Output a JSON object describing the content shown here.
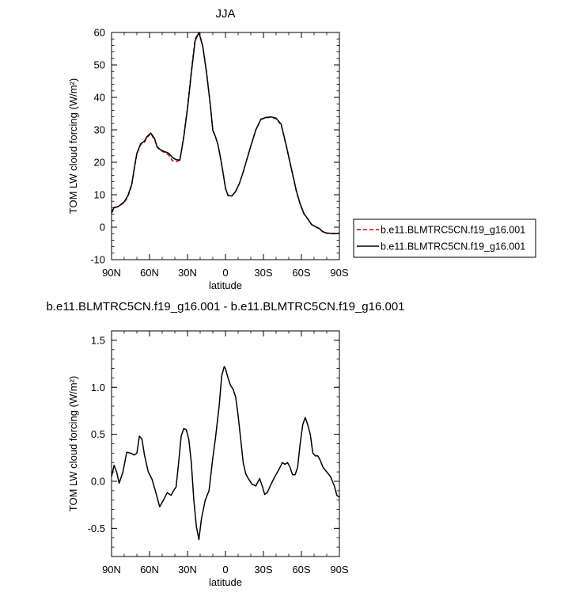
{
  "chart_data": [
    {
      "type": "line",
      "title": "JJA",
      "xlabel": "latitude",
      "ylabel": "TOM LW cloud forcing (W/m²)",
      "ylim": [
        -10,
        60
      ],
      "yticks": [
        -10,
        0,
        10,
        20,
        30,
        40,
        50,
        60
      ],
      "xlim": [
        -90,
        90
      ],
      "xticks": [
        {
          "value": -90,
          "label": "90N"
        },
        {
          "value": -60,
          "label": "60N"
        },
        {
          "value": -30,
          "label": "30N"
        },
        {
          "value": 0,
          "label": "0"
        },
        {
          "value": 30,
          "label": "30S"
        },
        {
          "value": 60,
          "label": "60S"
        },
        {
          "value": 90,
          "label": "90S"
        }
      ],
      "legend": {
        "placement": "right"
      },
      "series": [
        {
          "name": "b.e11.BLMTRC5CN.f19_g16.001",
          "color": "#cc0000",
          "dash": true,
          "x": [
            -90,
            -88,
            -85,
            -80,
            -77,
            -74,
            -72,
            -70,
            -67,
            -64,
            -62,
            -59,
            -56,
            -54,
            -51,
            -48,
            -45,
            -42,
            -39,
            -36,
            -33,
            -30,
            -27,
            -24,
            -21,
            -18,
            -15,
            -12,
            -10,
            -8,
            -6,
            -4,
            -2,
            0,
            2,
            5,
            8,
            11,
            14,
            17,
            20,
            24,
            28,
            32,
            36,
            40,
            44,
            48,
            52,
            56,
            59,
            62,
            65,
            68,
            71,
            74,
            77,
            80,
            83,
            86,
            88,
            90
          ],
          "y": [
            4.3,
            5.9,
            6.4,
            7.5,
            9.5,
            13,
            18,
            22.5,
            25.5,
            26.2,
            27.6,
            28.8,
            27,
            24.6,
            23.6,
            23,
            22.3,
            20.5,
            20.2,
            20.6,
            28,
            37,
            48,
            58,
            60,
            56,
            48,
            38,
            30,
            28,
            25.5,
            21.5,
            17,
            12,
            9.7,
            9.6,
            11,
            13.5,
            17,
            21,
            25,
            30,
            33.2,
            33.7,
            33.9,
            33.4,
            31.5,
            25,
            18,
            11,
            7,
            4,
            2.5,
            0.8,
            0.2,
            -0.5,
            -1.5,
            -1.9,
            -1.8,
            -1.9,
            -1.8,
            -1.8
          ]
        },
        {
          "name": "b.e11.BLMTRC5CN.f19_g16.001",
          "color": "#000000",
          "dash": false,
          "x": [
            -90,
            -88,
            -85,
            -80,
            -77,
            -74,
            -72,
            -70,
            -67,
            -64,
            -62,
            -59,
            -56,
            -54,
            -51,
            -48,
            -45,
            -42,
            -39,
            -36,
            -33,
            -30,
            -27,
            -24,
            -21,
            -18,
            -15,
            -12,
            -10,
            -8,
            -6,
            -4,
            -2,
            0,
            2,
            5,
            8,
            11,
            14,
            17,
            20,
            24,
            28,
            32,
            36,
            40,
            44,
            48,
            52,
            56,
            59,
            62,
            65,
            68,
            71,
            74,
            77,
            80,
            83,
            86,
            88,
            90
          ],
          "y": [
            4.5,
            6.1,
            6.3,
            7.8,
            9.8,
            13.3,
            18.3,
            22.8,
            25.7,
            26.5,
            27.9,
            29,
            27.3,
            24.7,
            23.8,
            23.3,
            22.8,
            21.5,
            20.8,
            20.7,
            27.6,
            36.5,
            47.4,
            57.4,
            60,
            55.8,
            47.7,
            37.7,
            29.8,
            28,
            25.5,
            21.5,
            17,
            12,
            9.8,
            9.6,
            11,
            13.5,
            17,
            21,
            25,
            30,
            33.3,
            33.8,
            34,
            33.6,
            31.7,
            25.2,
            18.2,
            11.2,
            7.2,
            4.2,
            2.6,
            0.8,
            0.2,
            -0.4,
            -1.4,
            -1.8,
            -1.9,
            -2,
            -1.9,
            -1.9
          ]
        }
      ]
    },
    {
      "type": "line",
      "title": "b.e11.BLMTRC5CN.f19_g16.001 - b.e11.BLMTRC5CN.f19_g16.001",
      "xlabel": "latitude",
      "ylabel": "TOM LW cloud forcing (W/m²)",
      "ylim": [
        -0.8,
        1.6
      ],
      "yticks": [
        -0.5,
        0.0,
        0.5,
        1.0,
        1.5
      ],
      "ytick_labels": [
        "-0.5",
        "0.0",
        "0.5",
        "1.0",
        "1.5"
      ],
      "xlim": [
        -90,
        90
      ],
      "xticks": [
        {
          "value": -90,
          "label": "90N"
        },
        {
          "value": -60,
          "label": "60N"
        },
        {
          "value": -30,
          "label": "30N"
        },
        {
          "value": 0,
          "label": "0"
        },
        {
          "value": 30,
          "label": "30S"
        },
        {
          "value": 60,
          "label": "60S"
        },
        {
          "value": 90,
          "label": "90S"
        }
      ],
      "series": [
        {
          "color": "#000000",
          "dash": false,
          "x": [
            -90,
            -88,
            -86,
            -84,
            -81,
            -78,
            -75,
            -72,
            -70,
            -68,
            -66,
            -64,
            -61,
            -58,
            -55,
            -52,
            -49,
            -46,
            -43,
            -41,
            -39,
            -37,
            -35,
            -33,
            -31,
            -29,
            -27,
            -25,
            -23,
            -21,
            -19,
            -16,
            -13,
            -10,
            -8,
            -5,
            -3,
            -1,
            0,
            2,
            4,
            6,
            8,
            10,
            12,
            14,
            16,
            18,
            21,
            24,
            27,
            29,
            31,
            33,
            36,
            39,
            42,
            45,
            47,
            49,
            51,
            53,
            55,
            57,
            59,
            61,
            63,
            65,
            67,
            69,
            71,
            73,
            75,
            77,
            80,
            83,
            86,
            88,
            90
          ],
          "y": [
            0.05,
            0.17,
            0.1,
            -0.02,
            0.1,
            0.31,
            0.3,
            0.28,
            0.3,
            0.48,
            0.45,
            0.28,
            0.1,
            0.02,
            -0.12,
            -0.27,
            -0.2,
            -0.12,
            -0.15,
            -0.1,
            -0.06,
            0.2,
            0.48,
            0.56,
            0.55,
            0.45,
            0.2,
            -0.2,
            -0.48,
            -0.62,
            -0.4,
            -0.2,
            -0.1,
            0.25,
            0.45,
            0.8,
            1.12,
            1.22,
            1.2,
            1.1,
            1.02,
            0.98,
            0.9,
            0.7,
            0.45,
            0.2,
            0.08,
            0.03,
            -0.03,
            -0.05,
            0.03,
            -0.05,
            -0.14,
            -0.12,
            -0.03,
            0.05,
            0.12,
            0.2,
            0.18,
            0.2,
            0.15,
            0.07,
            0.07,
            0.15,
            0.4,
            0.6,
            0.68,
            0.6,
            0.5,
            0.3,
            0.27,
            0.27,
            0.22,
            0.15,
            0.1,
            0.05,
            -0.05,
            -0.15,
            -0.17
          ]
        }
      ]
    }
  ]
}
